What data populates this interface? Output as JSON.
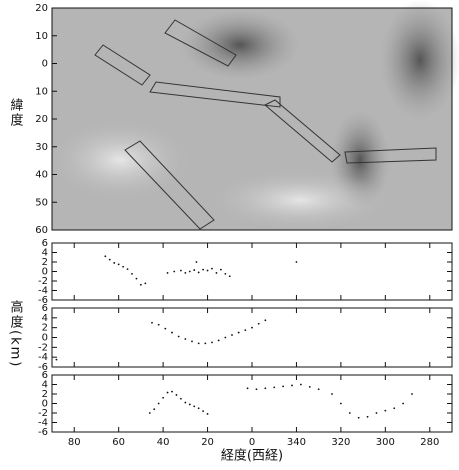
{
  "chart_data": [
    {
      "type": "map",
      "ylabel": "緯度",
      "ylim": [
        20,
        -60
      ],
      "yticks": [
        20,
        10,
        0,
        {
          "value": -10,
          "label": "10"
        },
        {
          "value": -20,
          "label": "20"
        },
        {
          "value": -30,
          "label": "30"
        },
        {
          "value": -40,
          "label": "40"
        },
        {
          "value": -50,
          "label": "50"
        },
        {
          "value": -60,
          "label": "60"
        }
      ]
    },
    {
      "type": "scatter",
      "color": "#111",
      "xlim": [
        90,
        -90
      ],
      "ylim": [
        -6,
        6
      ],
      "yticks": [
        6,
        4,
        2,
        0,
        -2,
        -4,
        -6
      ],
      "x": [
        66,
        64,
        62,
        60,
        58,
        56,
        54,
        52,
        50,
        48,
        38,
        35,
        32,
        30,
        28,
        26,
        24,
        22,
        20,
        18,
        16,
        14,
        12,
        10,
        25,
        -20
      ],
      "y": [
        3.2,
        2.5,
        1.8,
        1.5,
        1,
        0.5,
        -0.5,
        -1.5,
        -2.8,
        -2.5,
        -0.3,
        0,
        0.2,
        -0.3,
        0,
        0.3,
        -0.2,
        0.4,
        0.2,
        0.6,
        -0.3,
        0.4,
        -0.5,
        -1,
        2,
        2
      ]
    },
    {
      "type": "scatter",
      "color": "#111",
      "ylabel": "高度(km)",
      "xlim": [
        90,
        -90
      ],
      "ylim": [
        -6,
        6
      ],
      "yticks": [
        6,
        4,
        2,
        0,
        -2,
        -4,
        -6
      ],
      "x": [
        45,
        42,
        39,
        36,
        33,
        30,
        27,
        24,
        21,
        18,
        15,
        12,
        9,
        6,
        3,
        0,
        -3,
        -6,
        88
      ],
      "y": [
        3,
        2.6,
        1.8,
        1,
        0.2,
        -0.3,
        -0.8,
        -1.2,
        -1.2,
        -1,
        -0.6,
        0,
        0.5,
        1,
        1.5,
        2,
        2.8,
        3.5,
        -4.5
      ]
    },
    {
      "type": "scatter",
      "color": "#111",
      "xlabel": "経度(西経)",
      "xlim": [
        90,
        -90
      ],
      "ylim": [
        -6,
        6
      ],
      "yticks": [
        6,
        4,
        2,
        0,
        -2,
        -4,
        -6
      ],
      "xticks": [
        80,
        60,
        40,
        20,
        0,
        {
          "value": -20,
          "label": "340"
        },
        {
          "value": -40,
          "label": "320"
        },
        {
          "value": -60,
          "label": "300"
        },
        {
          "value": -80,
          "label": "280"
        }
      ],
      "x": [
        46,
        44,
        42,
        40,
        38,
        36,
        34,
        32,
        30,
        28,
        26,
        24,
        22,
        20,
        2,
        -2,
        -6,
        -10,
        -14,
        -18,
        -22,
        -26,
        -30,
        -36,
        -40,
        -44,
        -48,
        -52,
        -56,
        -60,
        -64,
        -68,
        -72
      ],
      "y": [
        -2,
        -1.2,
        0,
        1.2,
        2.3,
        2.5,
        1.8,
        1,
        0.2,
        -0.2,
        -0.6,
        -1,
        -1.6,
        -2.2,
        3.2,
        3,
        3.2,
        3.4,
        3.6,
        3.8,
        4,
        3.5,
        3,
        2,
        0,
        -2,
        -3,
        -2.8,
        -2,
        -1.5,
        -1,
        0,
        2
      ]
    }
  ]
}
